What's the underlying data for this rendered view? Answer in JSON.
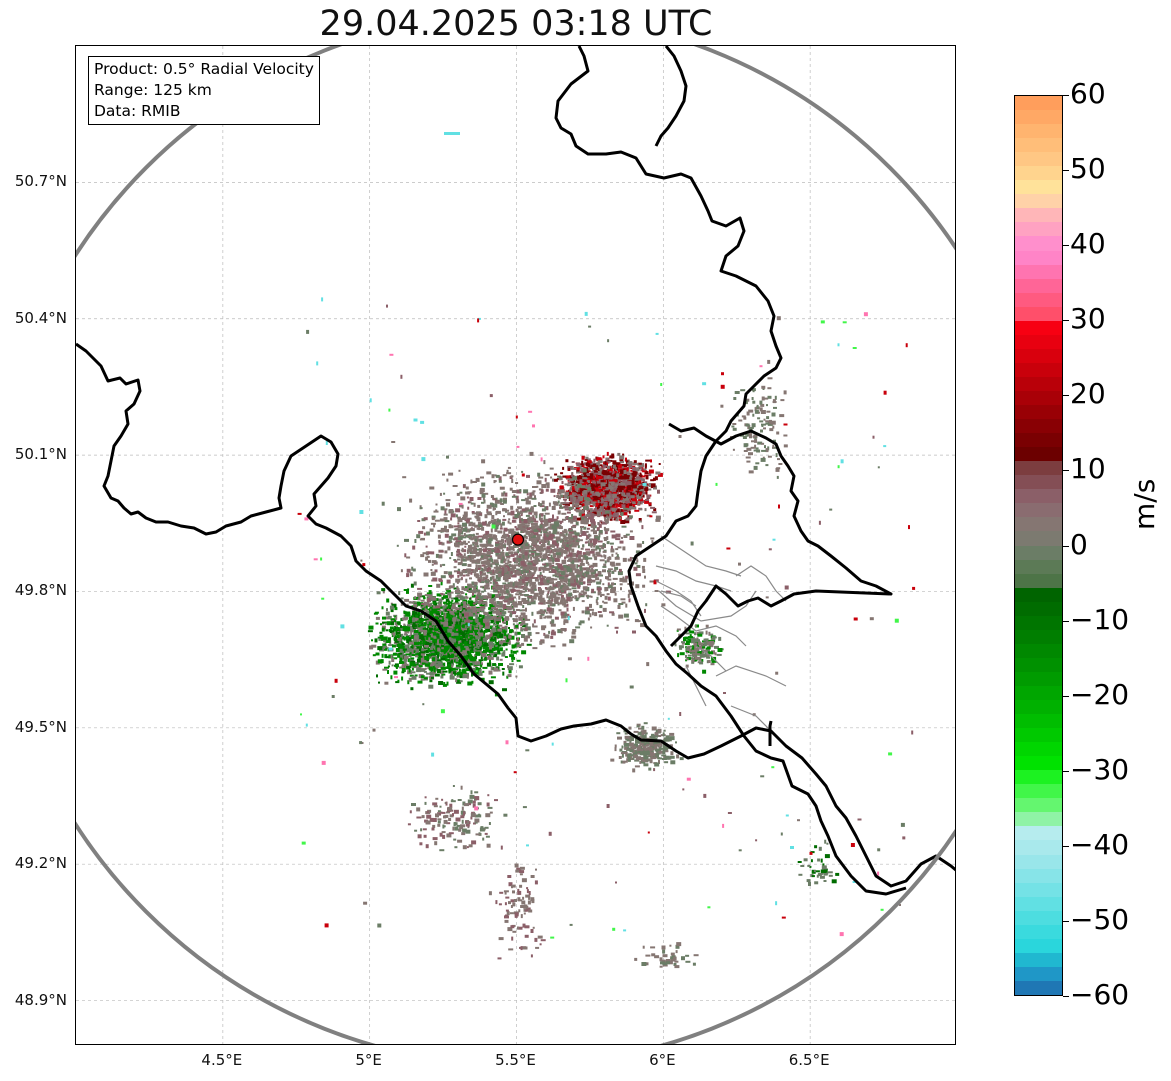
{
  "title": "29.04.2025 03:18 UTC",
  "info_box": {
    "product": "Product: 0.5° Radial Velocity",
    "range": "Range: 125 km",
    "data": "Data: RMIB"
  },
  "lat_labels": [
    "50.7°N",
    "50.4°N",
    "50.1°N",
    "49.8°N",
    "49.5°N",
    "49.2°N",
    "48.9°N"
  ],
  "lat_values": [
    50.7,
    50.4,
    50.1,
    49.8,
    49.5,
    49.2,
    48.9
  ],
  "lon_labels": [
    "4.5°E",
    "5°E",
    "5.5°E",
    "6°E",
    "6.5°E"
  ],
  "lon_values": [
    4.5,
    5.0,
    5.5,
    6.0,
    6.5
  ],
  "map_extent": {
    "lon_min": 4.0,
    "lon_max": 7.0,
    "lat_min": 48.8,
    "lat_max": 51.0
  },
  "radar_site": {
    "lon": 5.505,
    "lat": 49.914,
    "color": "#e0100f"
  },
  "range_ring_color": "#808080",
  "colorbar": {
    "unit": "m/s",
    "min": -60,
    "max": 60,
    "tick_labels": [
      "60",
      "50",
      "40",
      "30",
      "20",
      "10",
      "0",
      "−10",
      "−20",
      "−30",
      "−40",
      "−50",
      "−60"
    ],
    "tick_values": [
      60,
      50,
      40,
      30,
      20,
      10,
      0,
      -10,
      -20,
      -30,
      -40,
      -50,
      -60
    ],
    "colors_top_to_bottom": [
      "#ff9e5c",
      "#ffa865",
      "#ffb46f",
      "#ffbe79",
      "#ffc784",
      "#ffd48e",
      "#ffe29a",
      "#ffd2a8",
      "#ffb6b8",
      "#ffa2c2",
      "#ff8fcc",
      "#ff84c7",
      "#ff74b0",
      "#ff6597",
      "#ff5a80",
      "#ff4f6a",
      "#f70012",
      "#e80010",
      "#d9000d",
      "#c9000b",
      "#b90009",
      "#a90007",
      "#990005",
      "#890004",
      "#7a0002",
      "#6c0000",
      "#7c3d3f",
      "#844e55",
      "#8b5f68",
      "#8a6c70",
      "#857672",
      "#7c7a70",
      "#6b7d66",
      "#5c7a56",
      "#4d7447",
      "#006400",
      "#006c00",
      "#007500",
      "#007e00",
      "#008800",
      "#009100",
      "#009b00",
      "#00a600",
      "#00b100",
      "#00bd00",
      "#00c900",
      "#00d600",
      "#00e200",
      "#1cf221",
      "#41f649",
      "#64f66f",
      "#8ff3a6",
      "#b6ecee",
      "#a9e9ec",
      "#99e6ea",
      "#87e4e8",
      "#74e2e6",
      "#61e0e3",
      "#4ddde0",
      "#3adade",
      "#2ad6dc",
      "#20b8d0",
      "#1f97c7",
      "#1f77b4"
    ]
  },
  "echo_palette": {
    "gray": "#857672",
    "gray_green": "#6b7d66",
    "mauve": "#8b5f68",
    "dark_red": "#7a0002",
    "red": "#c9000b",
    "green": "#008800",
    "dark_green": "#006c00",
    "bright_green": "#41f649",
    "cyan": "#61e0e3",
    "pink": "#ff74b0"
  }
}
